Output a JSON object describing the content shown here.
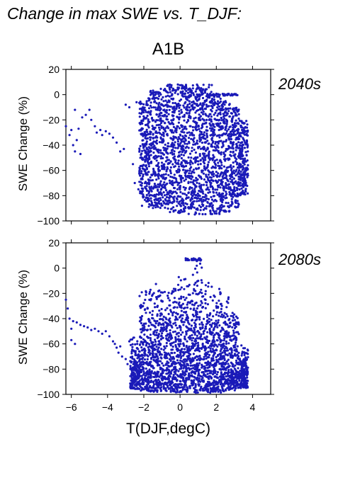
{
  "figure_title": "Change in max SWE vs. T_DJF:",
  "chart_data": [
    {
      "type": "scatter",
      "title": "A1B",
      "panel_label": "2040s",
      "xlabel": "T(DJF,degC)",
      "ylabel": "SWE Change (%)",
      "xlim": [
        -6.3,
        5
      ],
      "ylim": [
        -100,
        20
      ],
      "xticks": [
        -6,
        -4,
        -2,
        0,
        2,
        4
      ],
      "yticks": [
        20,
        0,
        -20,
        -40,
        -60,
        -80,
        -100
      ],
      "point_color": "#1a1ab8",
      "series": [
        {
          "values": [
            [
              -6.3,
              -25
            ],
            [
              -6.1,
              -32
            ],
            [
              -6.0,
              -28
            ],
            [
              -5.9,
              -40
            ],
            [
              -5.8,
              -45
            ],
            [
              -5.7,
              -36
            ],
            [
              -5.6,
              -27
            ],
            [
              -5.5,
              -47
            ],
            [
              -5.8,
              -12
            ],
            [
              -5.4,
              -18
            ],
            [
              -5.2,
              -16
            ],
            [
              -5.0,
              -12
            ],
            [
              -4.9,
              -20
            ],
            [
              -4.7,
              -25
            ],
            [
              -4.6,
              -30
            ],
            [
              -4.4,
              -28
            ],
            [
              -4.3,
              -32
            ],
            [
              -4.1,
              -29
            ],
            [
              -3.9,
              -31
            ],
            [
              -3.7,
              -34
            ],
            [
              -3.5,
              -38
            ],
            [
              -3.3,
              -45
            ],
            [
              -3.1,
              -43
            ],
            [
              -3.0,
              -8
            ],
            [
              -2.8,
              -10
            ],
            [
              -2.6,
              -55
            ],
            [
              -2.5,
              -70
            ],
            [
              -2.4,
              -6
            ],
            [
              -2.3,
              -75
            ],
            [
              -2.1,
              -88
            ]
          ]
        }
      ],
      "dense_region": {
        "columns": [
          {
            "x": -2.0,
            "range": [
              -85,
              -5
            ]
          },
          {
            "x": -1.5,
            "range": [
              -90,
              5
            ]
          },
          {
            "x": -1.0,
            "range": [
              -90,
              5
            ]
          },
          {
            "x": -0.5,
            "range": [
              -93,
              8
            ]
          },
          {
            "x": 0.0,
            "range": [
              -94,
              8
            ]
          },
          {
            "x": 0.5,
            "range": [
              -95,
              8
            ]
          },
          {
            "x": 1.0,
            "range": [
              -95,
              8
            ]
          },
          {
            "x": 1.5,
            "range": [
              -95,
              8
            ]
          },
          {
            "x": 2.0,
            "range": [
              -95,
              0
            ]
          },
          {
            "x": 2.5,
            "range": [
              -93,
              -5
            ]
          },
          {
            "x": 3.0,
            "range": [
              -90,
              -10
            ]
          },
          {
            "x": 3.5,
            "range": [
              -80,
              -20
            ]
          }
        ],
        "ceiling_run": {
          "x_range": [
            1.5,
            3.2
          ],
          "y": 0
        },
        "point_count": 2400
      }
    },
    {
      "type": "scatter",
      "title": "",
      "panel_label": "2080s",
      "xlabel": "T(DJF,degC)",
      "ylabel": "SWE Change (%)",
      "xlim": [
        -6.3,
        5
      ],
      "ylim": [
        -100,
        20
      ],
      "xticks": [
        -6,
        -4,
        -2,
        0,
        2,
        4
      ],
      "yticks": [
        20,
        0,
        -20,
        -40,
        -60,
        -80,
        -100
      ],
      "point_color": "#1a1ab8",
      "series": [
        {
          "values": [
            [
              -6.3,
              -25
            ],
            [
              -6.2,
              -32
            ],
            [
              -6.1,
              -40
            ],
            [
              -6.0,
              -48
            ],
            [
              -5.9,
              -42
            ],
            [
              -5.7,
              -43
            ],
            [
              -5.5,
              -45
            ],
            [
              -5.3,
              -46
            ],
            [
              -5.1,
              -47
            ],
            [
              -4.9,
              -49
            ],
            [
              -4.7,
              -48
            ],
            [
              -4.5,
              -50
            ],
            [
              -4.3,
              -52
            ],
            [
              -4.1,
              -50
            ],
            [
              -3.9,
              -54
            ],
            [
              -3.7,
              -58
            ],
            [
              -3.6,
              -60
            ],
            [
              -3.5,
              -63
            ],
            [
              -3.3,
              -62
            ],
            [
              -3.2,
              -70
            ],
            [
              -3.0,
              -72
            ],
            [
              -2.9,
              -76
            ],
            [
              -2.7,
              -80
            ],
            [
              -2.6,
              -85
            ],
            [
              -2.5,
              -88
            ],
            [
              -6.0,
              -57
            ],
            [
              -5.8,
              -60
            ],
            [
              -3.4,
              -67
            ],
            [
              -2.8,
              -58
            ],
            [
              -2.4,
              -93
            ]
          ]
        }
      ],
      "dense_region": {
        "columns": [
          {
            "x": -2.5,
            "range": [
              -96,
              -50
            ]
          },
          {
            "x": -2.0,
            "range": [
              -97,
              -15
            ]
          },
          {
            "x": -1.5,
            "range": [
              -98,
              -12
            ]
          },
          {
            "x": -1.0,
            "range": [
              -98,
              -10
            ]
          },
          {
            "x": -0.5,
            "range": [
              -98,
              -8
            ]
          },
          {
            "x": 0.0,
            "range": [
              -99,
              -5
            ]
          },
          {
            "x": 0.5,
            "range": [
              -99,
              5
            ]
          },
          {
            "x": 1.0,
            "range": [
              -99,
              8
            ]
          },
          {
            "x": 1.5,
            "range": [
              -99,
              -10
            ]
          },
          {
            "x": 2.0,
            "range": [
              -99,
              -15
            ]
          },
          {
            "x": 2.5,
            "range": [
              -98,
              -20
            ]
          },
          {
            "x": 3.0,
            "range": [
              -97,
              -30
            ]
          },
          {
            "x": 3.5,
            "range": [
              -95,
              -60
            ]
          }
        ],
        "ceiling_run": {
          "x_range": [
            0.3,
            1.2
          ],
          "y": 7
        },
        "point_count": 2400
      }
    }
  ]
}
